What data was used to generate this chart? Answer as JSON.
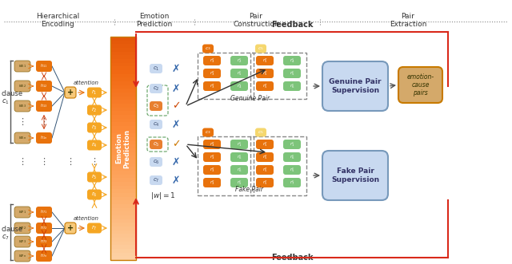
{
  "title": "",
  "bg_color": "#ffffff",
  "section_labels": [
    "Hierarchical\nEncoding",
    "Emotion\nPrediction",
    "Pair\nConstruction",
    "Pair\nExtraction"
  ],
  "feedback_text": "Feedback",
  "colors": {
    "orange_dark": "#E8720C",
    "orange_light": "#F5A623",
    "orange_pale": "#F7C97A",
    "green": "#7DC47A",
    "yellow_box": "#F5D76E",
    "blue_light": "#C8D9F0",
    "blue_box": "#A8C4E0",
    "red_feedback": "#D9291A",
    "arrow_dark": "#555555",
    "tan": "#D4A96A"
  }
}
